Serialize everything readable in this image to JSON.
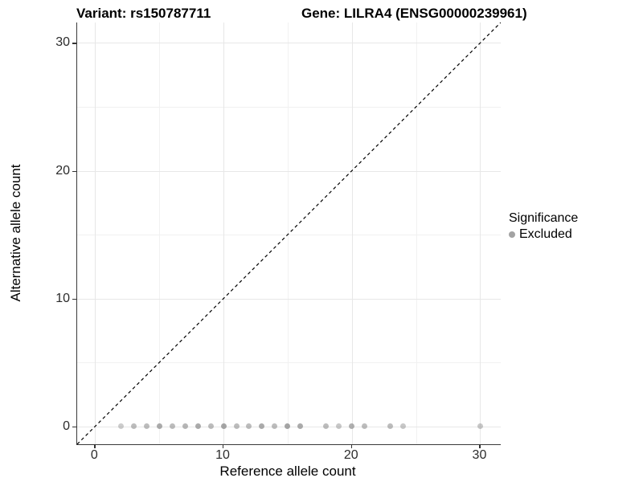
{
  "titles": {
    "variant": "Variant: rs150787711",
    "gene": "Gene: LILRA4 (ENSG00000239961)"
  },
  "axes": {
    "x": {
      "label": "Reference allele count",
      "tick_labels": [
        "0",
        "10",
        "20",
        "30"
      ]
    },
    "y": {
      "label": "Alternative allele count",
      "tick_labels": [
        "0",
        "10",
        "20",
        "30"
      ]
    }
  },
  "legend": {
    "title": "Significance",
    "items": [
      {
        "label": "Excluded",
        "color": "#a3a3a3",
        "shape": "circle"
      }
    ]
  },
  "colors": {
    "background": "#ffffff",
    "axis_line": "#3a3a3a",
    "major_grid": "#e7e7e7",
    "minor_grid": "#f1f1f1",
    "point": "#8f8f8f",
    "reference_line": "#000000"
  },
  "chart_data": {
    "type": "scatter",
    "title": "Variant: rs150787711 | Gene: LILRA4 (ENSG00000239961)",
    "xlabel": "Reference allele count",
    "ylabel": "Alternative allele count",
    "xlim": [
      -1.4,
      31.6
    ],
    "ylim": [
      -1.4,
      31.6
    ],
    "x_major_ticks": [
      0,
      10,
      20,
      30
    ],
    "y_major_ticks": [
      0,
      10,
      20,
      30
    ],
    "x_minor_ticks": [
      5,
      15,
      25
    ],
    "y_minor_ticks": [
      5,
      15,
      25
    ],
    "grid": true,
    "legend_position": "right",
    "reference_line": {
      "slope": 1,
      "intercept": 0,
      "style": "dashed",
      "color": "#000000",
      "meaning": "y = x identity line"
    },
    "series": [
      {
        "name": "Excluded",
        "color": "#8f8f8f",
        "points": [
          {
            "x": 2,
            "y": 0,
            "opacity": 0.45
          },
          {
            "x": 3,
            "y": 0,
            "opacity": 0.6
          },
          {
            "x": 4,
            "y": 0,
            "opacity": 0.6
          },
          {
            "x": 5,
            "y": 0,
            "opacity": 0.75
          },
          {
            "x": 6,
            "y": 0,
            "opacity": 0.6
          },
          {
            "x": 7,
            "y": 0,
            "opacity": 0.65
          },
          {
            "x": 8,
            "y": 0,
            "opacity": 0.75
          },
          {
            "x": 9,
            "y": 0,
            "opacity": 0.6
          },
          {
            "x": 10,
            "y": 0,
            "opacity": 0.8
          },
          {
            "x": 11,
            "y": 0,
            "opacity": 0.6
          },
          {
            "x": 12,
            "y": 0,
            "opacity": 0.6
          },
          {
            "x": 13,
            "y": 0,
            "opacity": 0.75
          },
          {
            "x": 14,
            "y": 0,
            "opacity": 0.6
          },
          {
            "x": 15,
            "y": 0,
            "opacity": 0.8
          },
          {
            "x": 16,
            "y": 0,
            "opacity": 0.75
          },
          {
            "x": 18,
            "y": 0,
            "opacity": 0.6
          },
          {
            "x": 19,
            "y": 0,
            "opacity": 0.5
          },
          {
            "x": 20,
            "y": 0,
            "opacity": 0.7
          },
          {
            "x": 21,
            "y": 0,
            "opacity": 0.6
          },
          {
            "x": 23,
            "y": 0,
            "opacity": 0.6
          },
          {
            "x": 24,
            "y": 0,
            "opacity": 0.5
          },
          {
            "x": 30,
            "y": 0,
            "opacity": 0.5
          }
        ]
      }
    ]
  }
}
